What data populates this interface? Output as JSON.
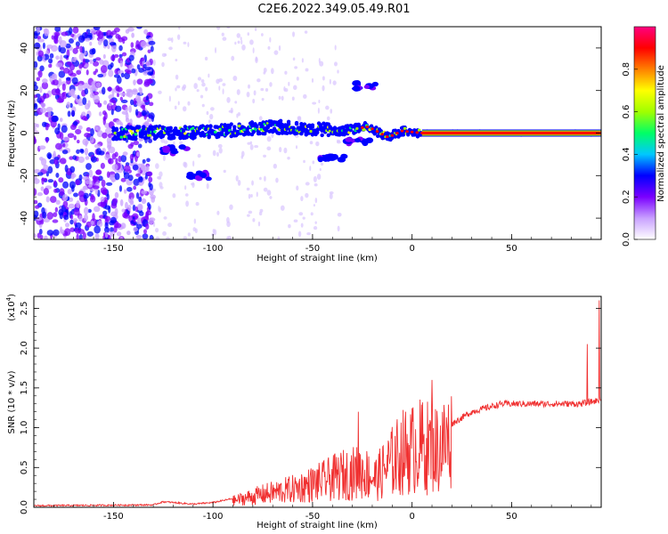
{
  "figure_title": "C2E6.2022.349.05.49.R01",
  "chart_data": [
    {
      "type": "heatmap",
      "xlabel": "Height of straight line (km)",
      "ylabel": "Frequency (Hz)",
      "xlim": [
        -190,
        95
      ],
      "ylim": [
        -50,
        50
      ],
      "x_ticks": [
        -150,
        -100,
        -50,
        0,
        50
      ],
      "x_tick_labels": [
        "-150",
        "-100",
        "-50",
        "0",
        "50"
      ],
      "y_ticks": [
        -40,
        -20,
        0,
        20,
        40
      ],
      "y_tick_labels": [
        "-40",
        "-20",
        "0",
        "20",
        "40"
      ],
      "colorbar": {
        "label": "Normalized spectral amplitude",
        "range": [
          0,
          1
        ],
        "ticks": [
          0,
          0.2,
          0.4,
          0.6,
          0.8
        ],
        "tick_labels": [
          "0.0",
          "0.2",
          "0.4",
          "0.6",
          "0.8"
        ],
        "colormap": [
          "#ffffff",
          "#c8a0ff",
          "#7a00ff",
          "#0000ff",
          "#00c8ff",
          "#00ff66",
          "#a0ff00",
          "#ffff00",
          "#ff8000",
          "#ff0000",
          "#ff0080"
        ]
      },
      "ridge": [
        {
          "x": -150,
          "y": 0
        },
        {
          "x": -100,
          "y": 0.5
        },
        {
          "x": -70,
          "y": 3
        },
        {
          "x": -50,
          "y": 2
        },
        {
          "x": -35,
          "y": 1
        },
        {
          "x": -22,
          "y": 3
        },
        {
          "x": -12,
          "y": -2
        },
        {
          "x": -5,
          "y": 1
        },
        {
          "x": 5,
          "y": 0
        },
        {
          "x": 95,
          "y": 0
        }
      ],
      "side_branches": [
        {
          "x": -120,
          "y": -8
        },
        {
          "x": -105,
          "y": -20
        },
        {
          "x": -40,
          "y": -12
        },
        {
          "x": -28,
          "y": -4
        },
        {
          "x": -25,
          "y": 22
        }
      ]
    },
    {
      "type": "line",
      "xlabel": "Height of straight line (km)",
      "ylabel": "SNR (10 * v/v)",
      "scale_label": "(x10",
      "scale_exponent": "4",
      "xlim": [
        -190,
        95
      ],
      "ylim": [
        0,
        2.65
      ],
      "x_ticks": [
        -150,
        -100,
        -50,
        0,
        50
      ],
      "x_tick_labels": [
        "-150",
        "-100",
        "-50",
        "0",
        "50"
      ],
      "y_ticks": [
        0,
        0.5,
        1.0,
        1.5,
        2.0,
        2.5
      ],
      "y_tick_labels": [
        "0.0",
        "0.5",
        "1.0",
        "1.5",
        "2.0",
        "2.5"
      ],
      "color": "#f03030",
      "envelope": [
        {
          "x": -190,
          "y": 0.01
        },
        {
          "x": -130,
          "y": 0.02
        },
        {
          "x": -125,
          "y": 0.06
        },
        {
          "x": -110,
          "y": 0.03
        },
        {
          "x": -100,
          "y": 0.05
        },
        {
          "x": -90,
          "y": 0.1
        },
        {
          "x": -75,
          "y": 0.2
        },
        {
          "x": -60,
          "y": 0.28
        },
        {
          "x": -45,
          "y": 0.4
        },
        {
          "x": -35,
          "y": 0.5
        },
        {
          "x": -25,
          "y": 0.55
        },
        {
          "x": -18,
          "y": 0.45
        },
        {
          "x": -12,
          "y": 0.65
        },
        {
          "x": -5,
          "y": 0.85
        },
        {
          "x": 5,
          "y": 0.95
        },
        {
          "x": 12,
          "y": 0.9
        },
        {
          "x": 20,
          "y": 1.05
        },
        {
          "x": 30,
          "y": 1.2
        },
        {
          "x": 45,
          "y": 1.3
        },
        {
          "x": 70,
          "y": 1.3
        },
        {
          "x": 85,
          "y": 1.3
        },
        {
          "x": 95,
          "y": 1.35
        }
      ],
      "spikes": [
        {
          "x": -27,
          "y": 1.2
        },
        {
          "x": 10,
          "y": 1.6
        },
        {
          "x": 88,
          "y": 2.05
        },
        {
          "x": 94,
          "y": 2.6
        }
      ]
    }
  ]
}
